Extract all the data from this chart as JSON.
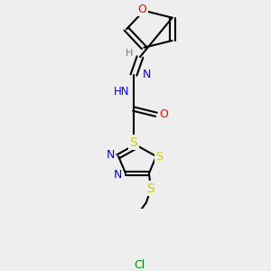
{
  "background_color": "#eeeeee",
  "atom_colors": {
    "O": "#ff0000",
    "N": "#0000ff",
    "S": "#cccc00",
    "Cl": "#008800",
    "H": "#777777",
    "C": "#000000"
  },
  "figsize": [
    3.0,
    3.0
  ],
  "dpi": 100
}
